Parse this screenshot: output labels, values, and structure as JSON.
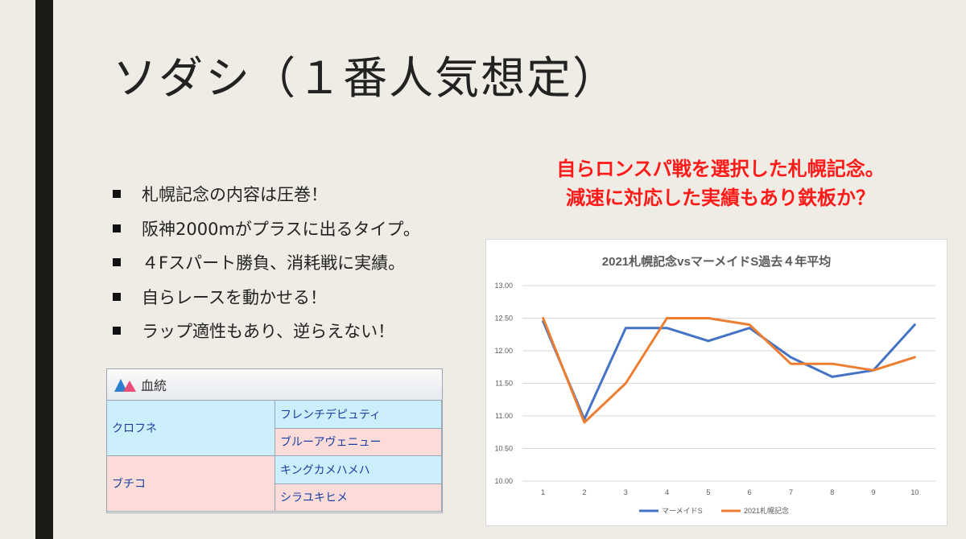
{
  "slide": {
    "title": "ソダシ（１番人気想定）",
    "bullets": [
      "札幌記念の内容は圧巻！",
      "阪神2000mがプラスに出るタイプ。",
      "４Fスパート勝負、消耗戦に実績。",
      "自らレースを動かせる！",
      "ラップ適性もあり、逆らえない！"
    ],
    "headline_line1": "自らロンスパ戦を選択した札幌記念。",
    "headline_line2": "減速に対応した実績もあり鉄板か？",
    "accent_color": "#ff1a1a"
  },
  "pedigree": {
    "header": "血統",
    "sire": "クロフネ",
    "sire_sire": "フレンチデピュティ",
    "sire_dam": "ブルーアヴェニュー",
    "dam": "ブチコ",
    "dam_sire": "キングカメハメハ",
    "dam_dam": "シラユキヒメ"
  },
  "chart_data": {
    "type": "line",
    "title": "2021札幌記念vsマーメイドS過去４年平均",
    "x": [
      1,
      2,
      3,
      4,
      5,
      6,
      7,
      8,
      9,
      10
    ],
    "ylim": [
      10.0,
      13.0
    ],
    "yticks": [
      "13.00",
      "12.50",
      "12.00",
      "11.50",
      "11.00",
      "10.50",
      "10.00"
    ],
    "grid": true,
    "legend_position": "bottom",
    "series": [
      {
        "name": "マーメイドS",
        "color": "#4472c4",
        "values": [
          12.45,
          10.95,
          12.35,
          12.35,
          12.15,
          12.35,
          11.9,
          11.6,
          11.7,
          12.4
        ]
      },
      {
        "name": "2021札幌記念",
        "color": "#ed7d31",
        "values": [
          12.5,
          10.9,
          11.5,
          12.5,
          12.5,
          12.4,
          11.8,
          11.8,
          11.7,
          11.9
        ]
      }
    ]
  }
}
